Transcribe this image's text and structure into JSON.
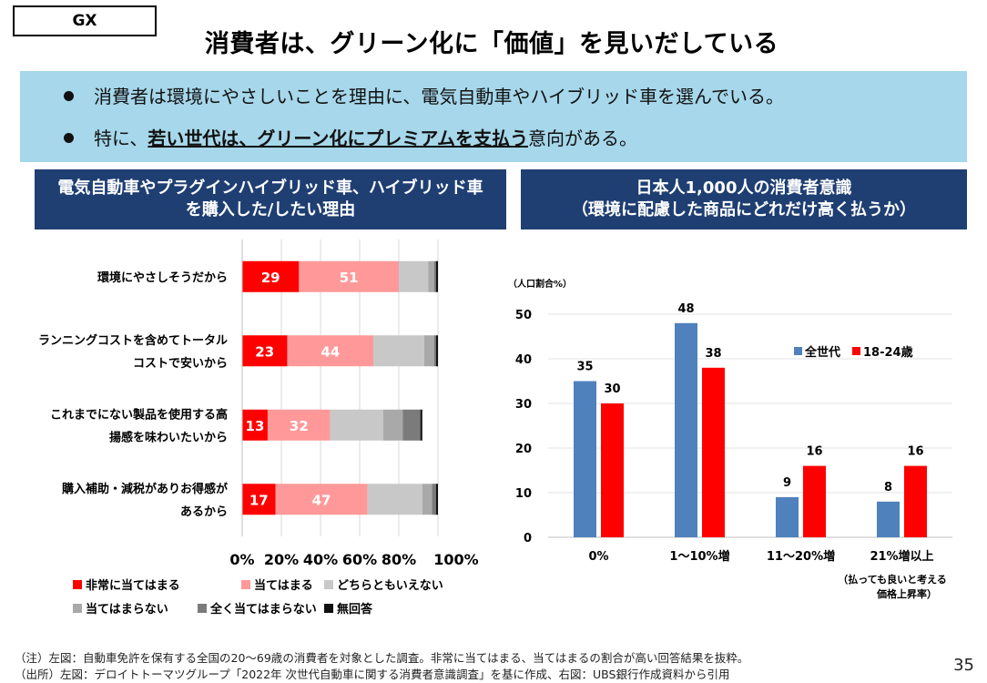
{
  "tag": "GX",
  "title": "消費者は、グリーン化に「価値」を見いだしている",
  "bullets": {
    "b1": "消費者は環境にやさしいことを理由に、電気自動車やハイブリッド車を選んでいる。",
    "b2_pre": "特に、",
    "b2_bold": "若い世代は、グリーン化にプレミアムを支払う",
    "b2_post": "意向がある。"
  },
  "left_header": {
    "line1": "電気自動車やプラグインハイブリッド車、ハイブリッド車",
    "line2": "を購入した/したい理由"
  },
  "right_header": {
    "line1": "日本人1,000人の消費者意識",
    "line2": "（環境に配慮した商品にどれだけ高く払うか）"
  },
  "chart_data": [
    {
      "type": "bar",
      "orientation": "horizontal",
      "stacked": true,
      "categories": [
        [
          "環境にやさしそうだから"
        ],
        [
          "ランニングコストを含めてトータル",
          "コストで安いから"
        ],
        [
          "これまでにない製品を使用する高",
          "揚感を味わいたいから"
        ],
        [
          "購入補助・減税がありお得感が",
          "あるから"
        ]
      ],
      "series": [
        {
          "name": "非常に当てはまる",
          "color": "#ff0000",
          "values": [
            29,
            23,
            13,
            17
          ],
          "labels": [
            "29",
            "23",
            "13",
            "17"
          ]
        },
        {
          "name": "当てはまる",
          "color": "#ff9999",
          "values": [
            51,
            44,
            32,
            47
          ],
          "labels": [
            "51",
            "44",
            "32",
            "47"
          ]
        },
        {
          "name": "どちらともいえない",
          "color": "#c8c8c8",
          "values": [
            15,
            26,
            27,
            28
          ]
        },
        {
          "name": "当てはまらない",
          "color": "#a9a9a9",
          "values": [
            3,
            5,
            10,
            5
          ]
        },
        {
          "name": "全く当てはまらない",
          "color": "#7b7b7b",
          "values": [
            1,
            1,
            9,
            2
          ]
        },
        {
          "name": "無回答",
          "color": "#111111",
          "values": [
            1,
            1,
            1,
            1
          ]
        }
      ],
      "xlim": [
        0,
        100
      ],
      "xticks": [
        "0%",
        "20%",
        "40%",
        "60%",
        "80%",
        "100%"
      ],
      "grid": true,
      "legend_position": "bottom"
    },
    {
      "type": "bar",
      "categories": [
        "0%",
        "1～10%増",
        "11～20%増",
        "21%増以上"
      ],
      "series": [
        {
          "name": "全世代",
          "color": "#4f81bd",
          "values": [
            35,
            48,
            9,
            8
          ]
        },
        {
          "name": "18-24歳",
          "color": "#ff0000",
          "values": [
            30,
            38,
            16,
            16
          ]
        }
      ],
      "ylim": [
        0,
        50
      ],
      "yticks": [
        "0",
        "10",
        "20",
        "30",
        "40",
        "50"
      ],
      "ylabel": "（人口割合%）",
      "xlabel": [
        "（払っても良いと考える",
        "価格上昇率）"
      ],
      "grid": true,
      "legend_position": "top-right"
    }
  ],
  "notes": {
    "n1": "（注）左図：自動車免許を保有する全国の20～69歳の消費者を対象とした調査。非常に当てはまる、当てはまるの割合が高い回答結果を抜粋。",
    "n2": "（出所）左図：デロイトトーマツグループ「2022年 次世代自動車に関する消費者意識調査」を基に作成、右図：UBS銀行作成資料から引用"
  },
  "page_number": "35"
}
